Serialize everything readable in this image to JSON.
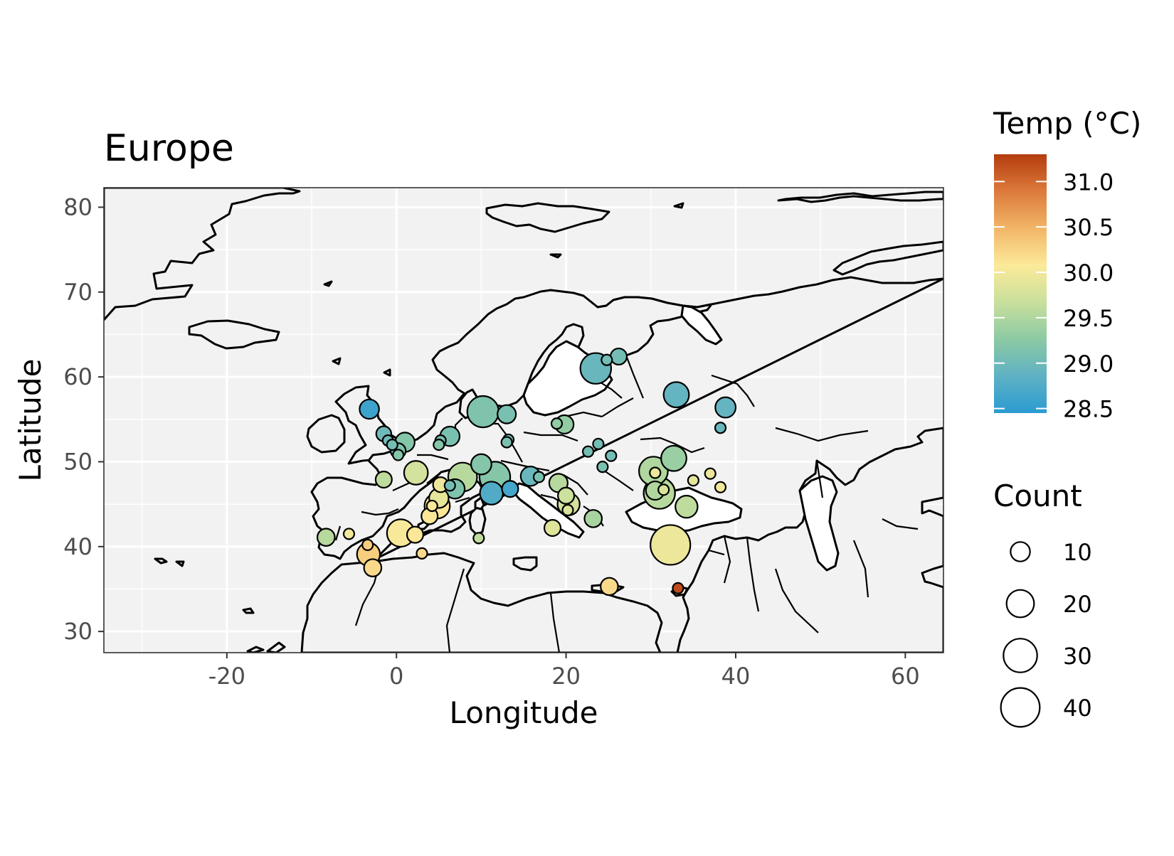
{
  "chart_data": {
    "type": "scatter",
    "subtype": "bubble-map",
    "title": "Europe",
    "xlabel": "Longitude",
    "ylabel": "Latitude",
    "xlim": [
      -34.5,
      64.5
    ],
    "ylim": [
      27.5,
      82.3
    ],
    "x_ticks": [
      -20,
      0,
      20,
      40,
      60
    ],
    "y_ticks": [
      30,
      40,
      50,
      60,
      70,
      80
    ],
    "grid": true,
    "panel_background": "#f2f2f2",
    "color_legend": {
      "title": "Temp (°C)",
      "range": [
        28.45,
        31.3
      ],
      "breaks": [
        "31.0",
        "30.5",
        "30.0",
        "29.5",
        "29.0",
        "28.5"
      ],
      "break_values": [
        31.0,
        30.5,
        30.0,
        29.5,
        29.0,
        28.5
      ],
      "palette": [
        "#2b9bd1",
        "#5fb1c4",
        "#8ccaa4",
        "#c9e09c",
        "#fcea9a",
        "#f2b567",
        "#dc7a3b",
        "#b43c0e"
      ]
    },
    "size_legend": {
      "title": "Count",
      "breaks": [
        "10",
        "20",
        "30",
        "40"
      ],
      "break_values": [
        10,
        20,
        30,
        40
      ],
      "max": 45
    },
    "points": [
      {
        "lon": 23.5,
        "lat": 61.0,
        "temp": 28.95,
        "count": 25
      },
      {
        "lon": 26.2,
        "lat": 62.4,
        "temp": 29.05,
        "count": 7
      },
      {
        "lon": 24.8,
        "lat": 62.0,
        "temp": 29.05,
        "count": 3
      },
      {
        "lon": 33.0,
        "lat": 57.9,
        "temp": 28.9,
        "count": 17
      },
      {
        "lon": 38.8,
        "lat": 56.4,
        "temp": 28.9,
        "count": 11
      },
      {
        "lon": 38.2,
        "lat": 54.0,
        "temp": 28.95,
        "count": 3
      },
      {
        "lon": -3.2,
        "lat": 56.2,
        "temp": 28.6,
        "count": 10
      },
      {
        "lon": -1.5,
        "lat": 53.3,
        "temp": 29.0,
        "count": 6
      },
      {
        "lon": -1.0,
        "lat": 52.5,
        "temp": 29.0,
        "count": 3
      },
      {
        "lon": -0.5,
        "lat": 52.0,
        "temp": 29.05,
        "count": 3
      },
      {
        "lon": 1.0,
        "lat": 52.3,
        "temp": 29.2,
        "count": 10
      },
      {
        "lon": 0.2,
        "lat": 51.3,
        "temp": 29.15,
        "count": 6
      },
      {
        "lon": 0.2,
        "lat": 50.8,
        "temp": 29.2,
        "count": 3
      },
      {
        "lon": 6.3,
        "lat": 53.0,
        "temp": 29.1,
        "count": 10
      },
      {
        "lon": 5.2,
        "lat": 52.5,
        "temp": 29.1,
        "count": 3
      },
      {
        "lon": 5.0,
        "lat": 52.0,
        "temp": 29.2,
        "count": 3
      },
      {
        "lon": 10.2,
        "lat": 55.9,
        "temp": 29.15,
        "count": 26
      },
      {
        "lon": 13.0,
        "lat": 55.6,
        "temp": 29.1,
        "count": 9
      },
      {
        "lon": 13.2,
        "lat": 52.6,
        "temp": 29.05,
        "count": 3
      },
      {
        "lon": 13.0,
        "lat": 52.3,
        "temp": 29.1,
        "count": 3
      },
      {
        "lon": 19.8,
        "lat": 54.4,
        "temp": 29.3,
        "count": 9
      },
      {
        "lon": 18.9,
        "lat": 54.5,
        "temp": 29.3,
        "count": 3
      },
      {
        "lon": 23.8,
        "lat": 52.1,
        "temp": 29.05,
        "count": 3
      },
      {
        "lon": 22.6,
        "lat": 51.2,
        "temp": 29.05,
        "count": 3
      },
      {
        "lon": 25.3,
        "lat": 50.7,
        "temp": 29.05,
        "count": 3
      },
      {
        "lon": 24.3,
        "lat": 49.4,
        "temp": 29.1,
        "count": 3
      },
      {
        "lon": 32.7,
        "lat": 50.4,
        "temp": 29.35,
        "count": 17
      },
      {
        "lon": 30.3,
        "lat": 48.9,
        "temp": 29.5,
        "count": 22
      },
      {
        "lon": 30.5,
        "lat": 46.6,
        "temp": 29.5,
        "count": 9
      },
      {
        "lon": 31.0,
        "lat": 46.3,
        "temp": 29.55,
        "count": 26
      },
      {
        "lon": 34.2,
        "lat": 44.7,
        "temp": 29.6,
        "count": 13
      },
      {
        "lon": 35.0,
        "lat": 47.8,
        "temp": 29.9,
        "count": 3
      },
      {
        "lon": 37.0,
        "lat": 48.6,
        "temp": 29.95,
        "count": 3
      },
      {
        "lon": 38.2,
        "lat": 47.0,
        "temp": 30.0,
        "count": 3
      },
      {
        "lon": 30.5,
        "lat": 48.7,
        "temp": 29.95,
        "count": 3
      },
      {
        "lon": 31.5,
        "lat": 46.7,
        "temp": 29.8,
        "count": 3
      },
      {
        "lon": -1.5,
        "lat": 47.9,
        "temp": 29.6,
        "count": 7
      },
      {
        "lon": 2.3,
        "lat": 48.7,
        "temp": 29.75,
        "count": 15
      },
      {
        "lon": 10.0,
        "lat": 49.7,
        "temp": 29.2,
        "count": 11
      },
      {
        "lon": 7.8,
        "lat": 48.2,
        "temp": 29.55,
        "count": 22
      },
      {
        "lon": 11.6,
        "lat": 48.2,
        "temp": 29.2,
        "count": 25
      },
      {
        "lon": 6.9,
        "lat": 46.8,
        "temp": 29.15,
        "count": 10
      },
      {
        "lon": 6.3,
        "lat": 47.2,
        "temp": 29.05,
        "count": 3
      },
      {
        "lon": 11.2,
        "lat": 46.3,
        "temp": 28.75,
        "count": 14
      },
      {
        "lon": 13.4,
        "lat": 46.8,
        "temp": 28.65,
        "count": 7
      },
      {
        "lon": 15.8,
        "lat": 48.3,
        "temp": 28.95,
        "count": 10
      },
      {
        "lon": 16.8,
        "lat": 48.2,
        "temp": 29.1,
        "count": 3
      },
      {
        "lon": 19.1,
        "lat": 47.5,
        "temp": 29.55,
        "count": 9
      },
      {
        "lon": 20.3,
        "lat": 45.0,
        "temp": 29.75,
        "count": 13
      },
      {
        "lon": 20.0,
        "lat": 46.0,
        "temp": 29.7,
        "count": 7
      },
      {
        "lon": 20.2,
        "lat": 44.3,
        "temp": 29.8,
        "count": 3
      },
      {
        "lon": 23.2,
        "lat": 43.3,
        "temp": 29.45,
        "count": 8
      },
      {
        "lon": 18.4,
        "lat": 42.2,
        "temp": 29.85,
        "count": 7
      },
      {
        "lon": 9.7,
        "lat": 41.0,
        "temp": 29.6,
        "count": 3
      },
      {
        "lon": 5.0,
        "lat": 45.7,
        "temp": 29.9,
        "count": 10
      },
      {
        "lon": 4.8,
        "lat": 44.8,
        "temp": 30.1,
        "count": 17
      },
      {
        "lon": 4.2,
        "lat": 44.8,
        "temp": 30.05,
        "count": 3
      },
      {
        "lon": 3.9,
        "lat": 43.6,
        "temp": 30.1,
        "count": 7
      },
      {
        "lon": 5.2,
        "lat": 47.3,
        "temp": 29.95,
        "count": 6
      },
      {
        "lon": 0.5,
        "lat": 41.6,
        "temp": 30.05,
        "count": 20
      },
      {
        "lon": 2.2,
        "lat": 41.4,
        "temp": 30.1,
        "count": 7
      },
      {
        "lon": 3.0,
        "lat": 39.2,
        "temp": 30.2,
        "count": 3
      },
      {
        "lon": -8.3,
        "lat": 41.1,
        "temp": 29.55,
        "count": 8
      },
      {
        "lon": -5.6,
        "lat": 41.5,
        "temp": 30.0,
        "count": 3
      },
      {
        "lon": -3.3,
        "lat": 39.1,
        "temp": 30.3,
        "count": 14
      },
      {
        "lon": -3.4,
        "lat": 40.2,
        "temp": 30.3,
        "count": 3
      },
      {
        "lon": -2.8,
        "lat": 37.5,
        "temp": 30.2,
        "count": 8
      },
      {
        "lon": 32.3,
        "lat": 40.2,
        "temp": 29.95,
        "count": 42
      },
      {
        "lon": 25.1,
        "lat": 35.3,
        "temp": 30.2,
        "count": 8
      },
      {
        "lon": 33.2,
        "lat": 35.1,
        "temp": 31.2,
        "count": 3
      }
    ]
  }
}
